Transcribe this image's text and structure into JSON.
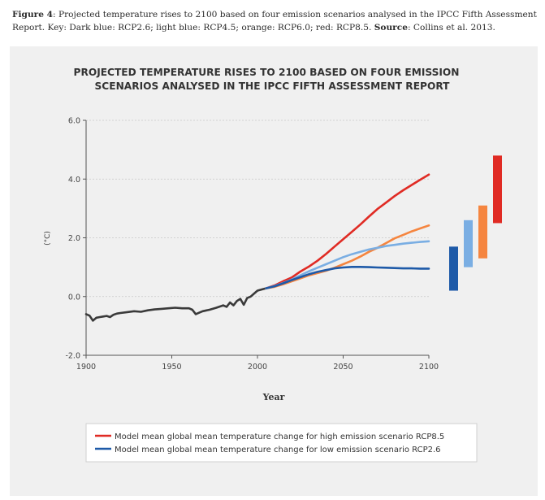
{
  "caption": {
    "figure_label": "Figure 4",
    "text": ": Projected temperature rises to 2100 based on four emission scenarios analysed in the IPCC Fifth Assessment Report. Key: Dark blue: RCP2.6; light blue: RCP4.5; orange: RCP6.0; red: RCP8.5. ",
    "source_label": "Source",
    "source_text": ": Collins et al. 2013."
  },
  "chart_data": {
    "type": "line",
    "title_line1": "PROJECTED TEMPERATURE RISES TO 2100 BASED ON FOUR EMISSION",
    "title_line2": "SCENARIOS ANALYSED IN THE IPCC FIFTH ASSESSMENT REPORT",
    "xlabel": "Year",
    "ylabel": "(°C)",
    "xlim": [
      1900,
      2100
    ],
    "ylim": [
      -2.0,
      6.0
    ],
    "x_ticks": [
      1900,
      1950,
      2000,
      2050,
      2100
    ],
    "x_tick_labels": [
      "1900",
      "1950",
      "2000",
      "2050",
      "2100"
    ],
    "y_ticks": [
      -2.0,
      0.0,
      2.0,
      4.0,
      6.0
    ],
    "y_tick_labels": [
      "-2.0",
      "0.0",
      "2.0",
      "4.0",
      "6.0"
    ],
    "series": [
      {
        "name": "Historical",
        "color": "#3a3a3a",
        "x": [
          1900,
          1902,
          1904,
          1906,
          1908,
          1910,
          1912,
          1914,
          1916,
          1918,
          1920,
          1924,
          1928,
          1932,
          1936,
          1940,
          1944,
          1948,
          1952,
          1956,
          1960,
          1962,
          1964,
          1966,
          1968,
          1972,
          1976,
          1980,
          1982,
          1984,
          1986,
          1988,
          1990,
          1992,
          1994,
          1996,
          1998,
          2000,
          2003,
          2005
        ],
        "values": [
          -0.6,
          -0.65,
          -0.82,
          -0.72,
          -0.7,
          -0.68,
          -0.66,
          -0.7,
          -0.62,
          -0.58,
          -0.56,
          -0.53,
          -0.5,
          -0.52,
          -0.47,
          -0.44,
          -0.42,
          -0.4,
          -0.38,
          -0.4,
          -0.4,
          -0.45,
          -0.6,
          -0.55,
          -0.5,
          -0.45,
          -0.38,
          -0.3,
          -0.35,
          -0.2,
          -0.3,
          -0.15,
          -0.08,
          -0.28,
          -0.05,
          0.0,
          0.1,
          0.2,
          0.25,
          0.28
        ]
      },
      {
        "name": "RCP8.5",
        "color": "#e02b24",
        "x": [
          2005,
          2010,
          2015,
          2020,
          2025,
          2030,
          2035,
          2040,
          2045,
          2050,
          2055,
          2060,
          2065,
          2070,
          2075,
          2080,
          2085,
          2090,
          2095,
          2100
        ],
        "values": [
          0.28,
          0.38,
          0.52,
          0.65,
          0.85,
          1.02,
          1.22,
          1.45,
          1.7,
          1.95,
          2.2,
          2.45,
          2.72,
          2.98,
          3.2,
          3.42,
          3.62,
          3.8,
          3.98,
          4.15
        ]
      },
      {
        "name": "RCP6.0",
        "color": "#f5853f",
        "x": [
          2005,
          2010,
          2015,
          2020,
          2025,
          2030,
          2035,
          2040,
          2045,
          2050,
          2055,
          2060,
          2065,
          2070,
          2075,
          2080,
          2085,
          2090,
          2095,
          2100
        ],
        "values": [
          0.28,
          0.33,
          0.42,
          0.52,
          0.62,
          0.72,
          0.8,
          0.88,
          0.98,
          1.1,
          1.22,
          1.36,
          1.52,
          1.66,
          1.82,
          1.98,
          2.1,
          2.22,
          2.32,
          2.42
        ]
      },
      {
        "name": "RCP4.5",
        "color": "#7aaee3",
        "x": [
          2005,
          2010,
          2015,
          2020,
          2025,
          2030,
          2035,
          2040,
          2045,
          2050,
          2055,
          2060,
          2065,
          2070,
          2075,
          2080,
          2085,
          2090,
          2095,
          2100
        ],
        "values": [
          0.28,
          0.36,
          0.46,
          0.58,
          0.72,
          0.86,
          0.98,
          1.1,
          1.22,
          1.34,
          1.44,
          1.52,
          1.6,
          1.66,
          1.72,
          1.76,
          1.8,
          1.83,
          1.86,
          1.88
        ]
      },
      {
        "name": "RCP2.6",
        "color": "#1e5aa8",
        "x": [
          2005,
          2010,
          2015,
          2020,
          2025,
          2030,
          2035,
          2040,
          2045,
          2050,
          2055,
          2060,
          2065,
          2070,
          2075,
          2080,
          2085,
          2090,
          2095,
          2100
        ],
        "values": [
          0.28,
          0.35,
          0.45,
          0.56,
          0.66,
          0.76,
          0.84,
          0.9,
          0.96,
          0.99,
          1.01,
          1.01,
          1.0,
          0.99,
          0.98,
          0.97,
          0.96,
          0.96,
          0.95,
          0.95
        ]
      }
    ],
    "range_bars": [
      {
        "name": "RCP2.6",
        "color": "#1e5aa8",
        "low": 0.2,
        "high": 1.7
      },
      {
        "name": "RCP4.5",
        "color": "#7aaee3",
        "low": 1.0,
        "high": 2.6
      },
      {
        "name": "RCP6.0",
        "color": "#f5853f",
        "low": 1.3,
        "high": 3.1
      },
      {
        "name": "RCP8.5",
        "color": "#e02b24",
        "low": 2.5,
        "high": 4.8
      }
    ],
    "legend": [
      {
        "label": "Model mean global mean temperature change for high emission scenario RCP8.5",
        "color": "#e02b24"
      },
      {
        "label": "Model mean global mean temperature change for low emission scenario RCP2.6",
        "color": "#1e5aa8"
      }
    ]
  }
}
